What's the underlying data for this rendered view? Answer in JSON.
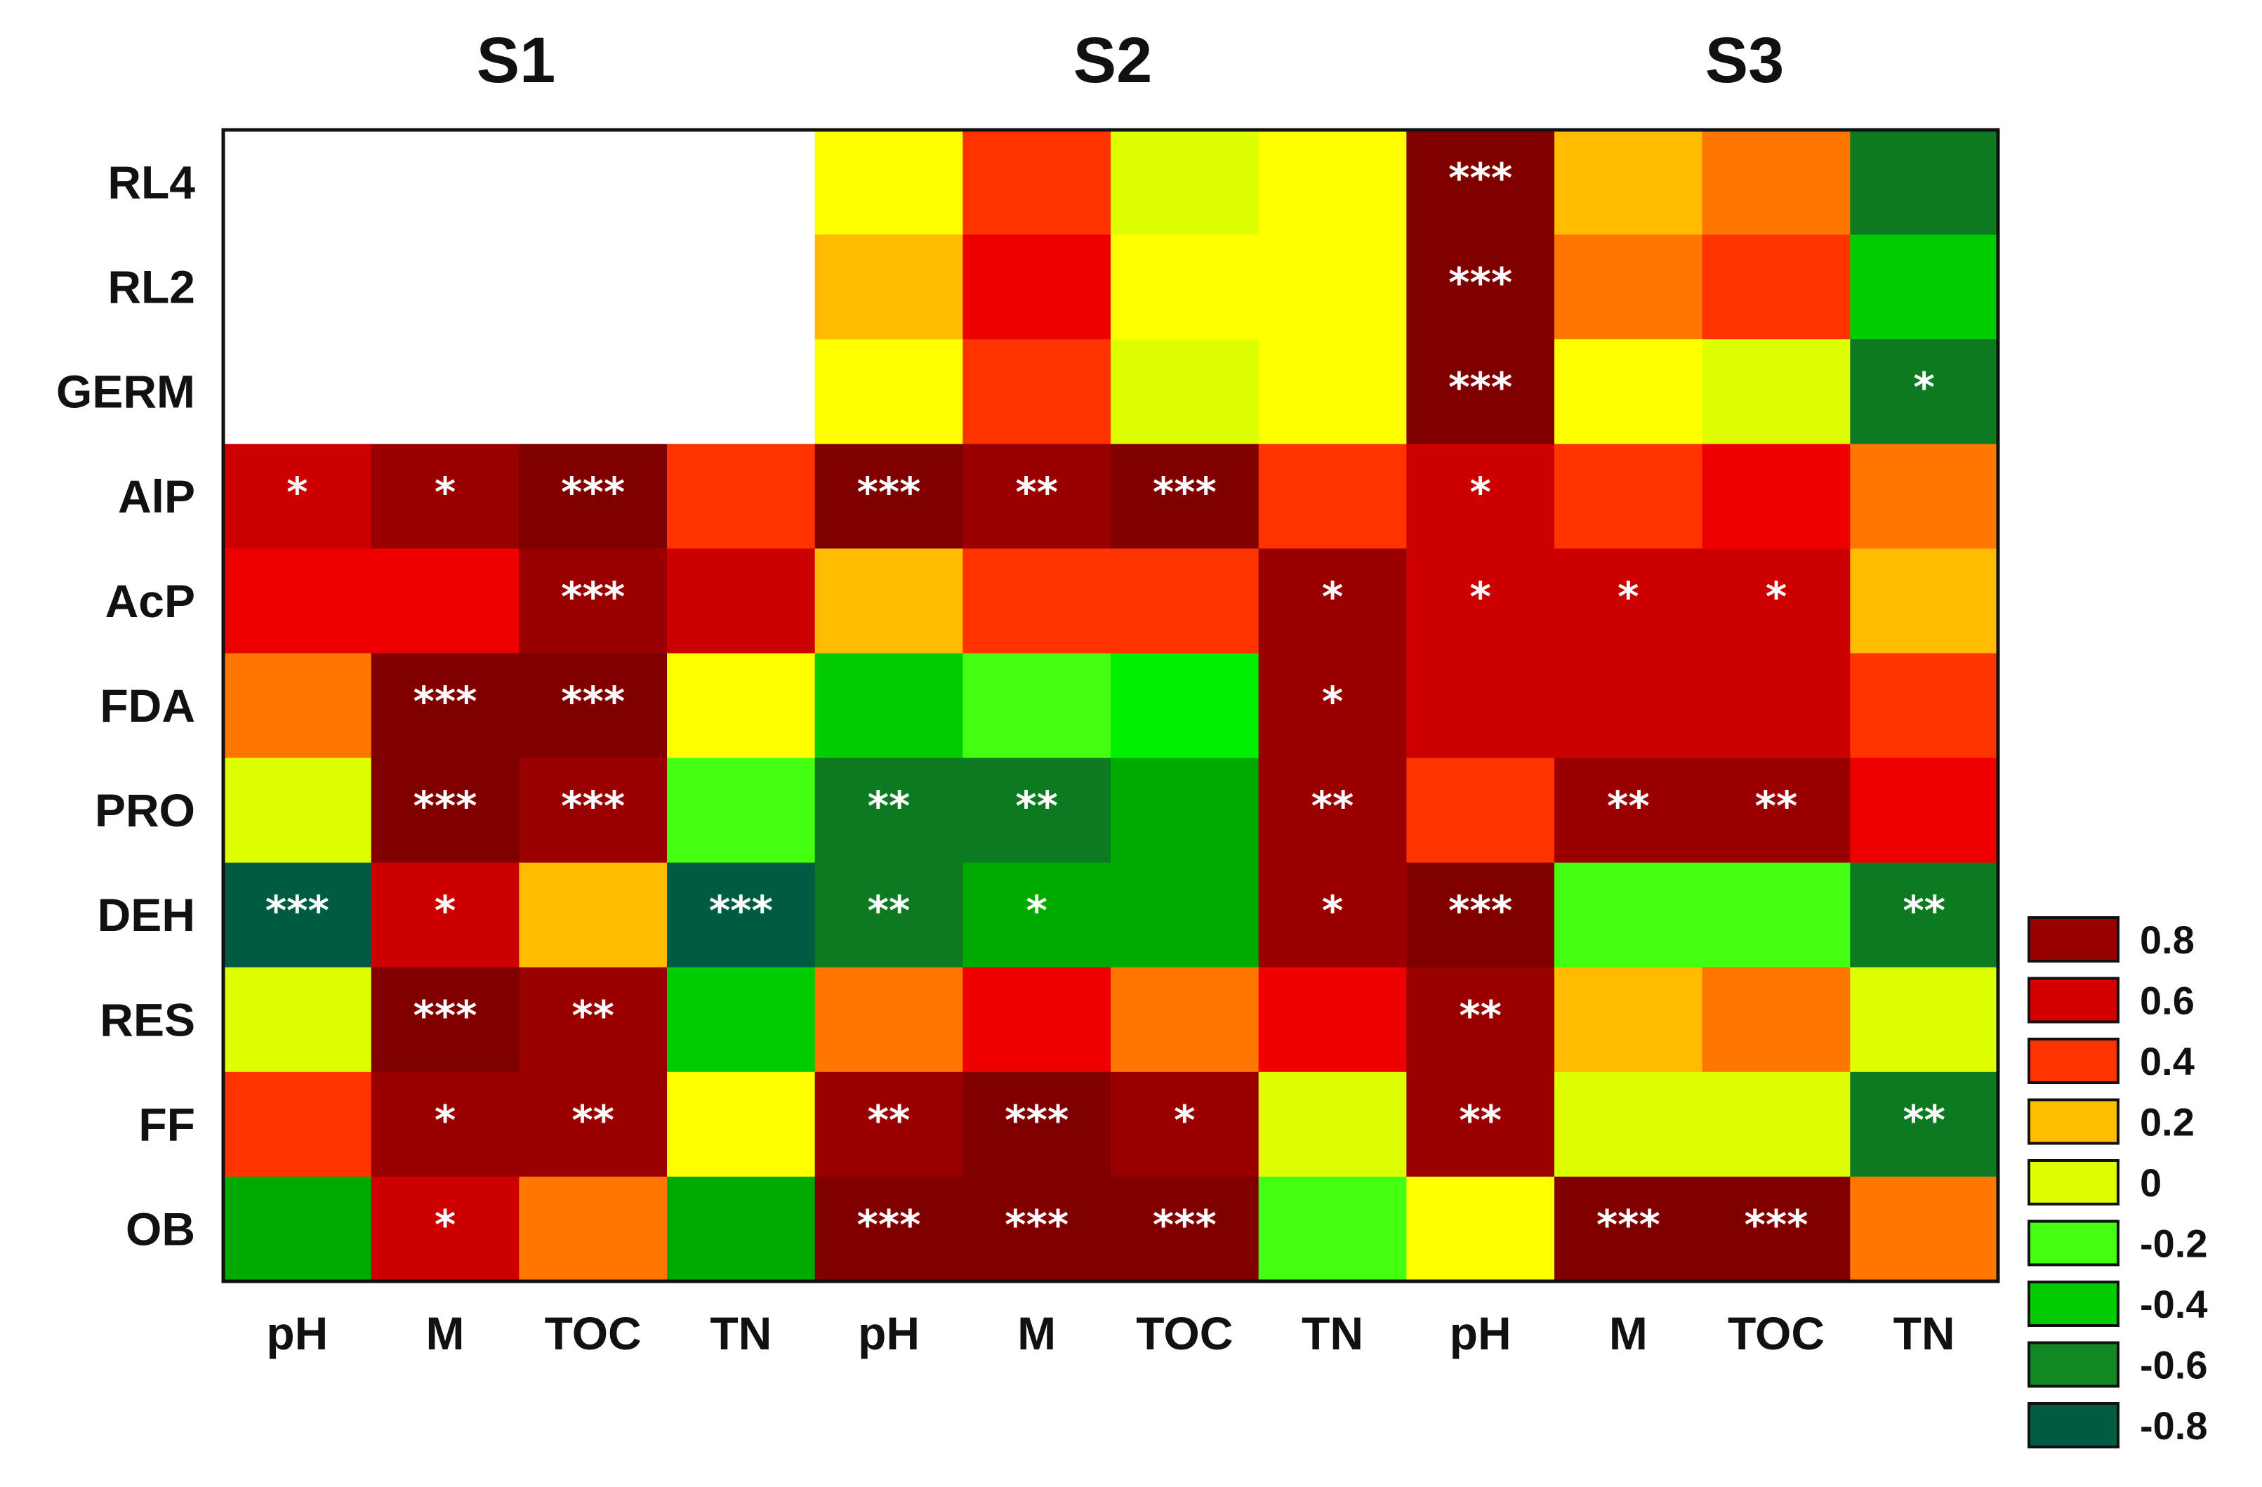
{
  "chart_data": {
    "type": "heatmap",
    "groups": [
      "S1",
      "S2",
      "S3"
    ],
    "columns": [
      "pH",
      "M",
      "TOC",
      "TN"
    ],
    "rows": [
      "RL4",
      "RL2",
      "GERM",
      "AlP",
      "AcP",
      "FDA",
      "PRO",
      "DEH",
      "RES",
      "FF",
      "OB"
    ],
    "values": [
      [
        null,
        null,
        null,
        null,
        0,
        0.4,
        0,
        0,
        0.8,
        0.2,
        0.3,
        -0.6
      ],
      [
        null,
        null,
        null,
        null,
        0.2,
        0.5,
        0,
        0,
        0.8,
        0.3,
        0.4,
        -0.4
      ],
      [
        null,
        null,
        null,
        null,
        0,
        0.4,
        0,
        0,
        0.8,
        0,
        0,
        -0.6
      ],
      [
        0.6,
        0.7,
        0.8,
        0.4,
        0.8,
        0.7,
        0.8,
        0.4,
        0.6,
        0.4,
        0.5,
        0.3
      ],
      [
        0.5,
        0.5,
        0.7,
        0.6,
        0.2,
        0.4,
        0.4,
        0.7,
        0.6,
        0.6,
        0.6,
        0.2
      ],
      [
        0.3,
        0.8,
        0.8,
        0,
        -0.4,
        -0.2,
        -0.3,
        0.7,
        0.6,
        0.6,
        0.6,
        0.4
      ],
      [
        0,
        0.8,
        0.7,
        -0.2,
        -0.6,
        -0.6,
        -0.5,
        0.7,
        0.4,
        0.7,
        0.7,
        0.5
      ],
      [
        -0.8,
        0.6,
        0.2,
        -0.8,
        -0.6,
        -0.5,
        -0.5,
        0.7,
        0.8,
        -0.2,
        -0.2,
        -0.6
      ],
      [
        0,
        0.8,
        0.7,
        -0.4,
        0.3,
        0.5,
        0.3,
        0.5,
        0.7,
        0.2,
        0.3,
        0
      ],
      [
        0.4,
        0.7,
        0.7,
        0,
        0.7,
        0.8,
        0.7,
        0,
        0.7,
        0,
        0,
        -0.6
      ],
      [
        -0.5,
        0.6,
        0.3,
        -0.5,
        0.8,
        0.8,
        0.8,
        -0.2,
        0,
        0.8,
        0.8,
        0.3
      ]
    ],
    "significance": [
      [
        "",
        "",
        "",
        "",
        "",
        "",
        "",
        "",
        "***",
        "",
        "",
        ""
      ],
      [
        "",
        "",
        "",
        "",
        "",
        "",
        "",
        "",
        "***",
        "",
        "",
        ""
      ],
      [
        "",
        "",
        "",
        "",
        "",
        "",
        "",
        "",
        "***",
        "",
        "",
        "*"
      ],
      [
        "*",
        "*",
        "***",
        "",
        "***",
        "**",
        "***",
        "",
        "*",
        "",
        "",
        ""
      ],
      [
        "",
        "",
        "***",
        "",
        "",
        "",
        "",
        "*",
        "*",
        "*",
        "*",
        ""
      ],
      [
        "",
        "***",
        "***",
        "",
        "",
        "",
        "",
        "*",
        "",
        "",
        "",
        ""
      ],
      [
        "",
        "***",
        "***",
        "",
        "**",
        "**",
        "",
        "**",
        "",
        "**",
        "**",
        ""
      ],
      [
        "***",
        "*",
        "",
        "***",
        "**",
        "*",
        "",
        "*",
        "***",
        "",
        "",
        "**"
      ],
      [
        "",
        "***",
        "**",
        "",
        "",
        "",
        "",
        "",
        "**",
        "",
        "",
        ""
      ],
      [
        "",
        "*",
        "**",
        "",
        "**",
        "***",
        "*",
        "",
        "**",
        "",
        "",
        "**"
      ],
      [
        "",
        "*",
        "",
        "",
        "***",
        "***",
        "***",
        "",
        "",
        "***",
        "***",
        ""
      ]
    ],
    "legend": {
      "labels": [
        "0.8",
        "0.6",
        "0.4",
        "0.2",
        "0",
        "-0.2",
        "-0.4",
        "-0.6",
        "-0.8"
      ],
      "colors": [
        "#990000",
        "#d40000",
        "#ff3300",
        "#ffbf00",
        "#dfff00",
        "#44ff11",
        "#00cc00",
        "#118822",
        "#005c40"
      ]
    },
    "value_range": [
      -0.8,
      0.8
    ]
  },
  "colors": {
    "0.8": "#800000",
    "0.7": "#9a0000",
    "0.6": "#cc0000",
    "0.5": "#ee0000",
    "0.4": "#ff3300",
    "0.3": "#ff7700",
    "0.2": "#ffbb00",
    "0": "#ffff00",
    "0_alt": "#ddff00",
    "-0.2": "#44ff11",
    "-0.3": "#00ee00",
    "-0.4": "#00cc00",
    "-0.5": "#00aa00",
    "-0.6": "#0b7a20",
    "-0.8": "#005c40"
  }
}
